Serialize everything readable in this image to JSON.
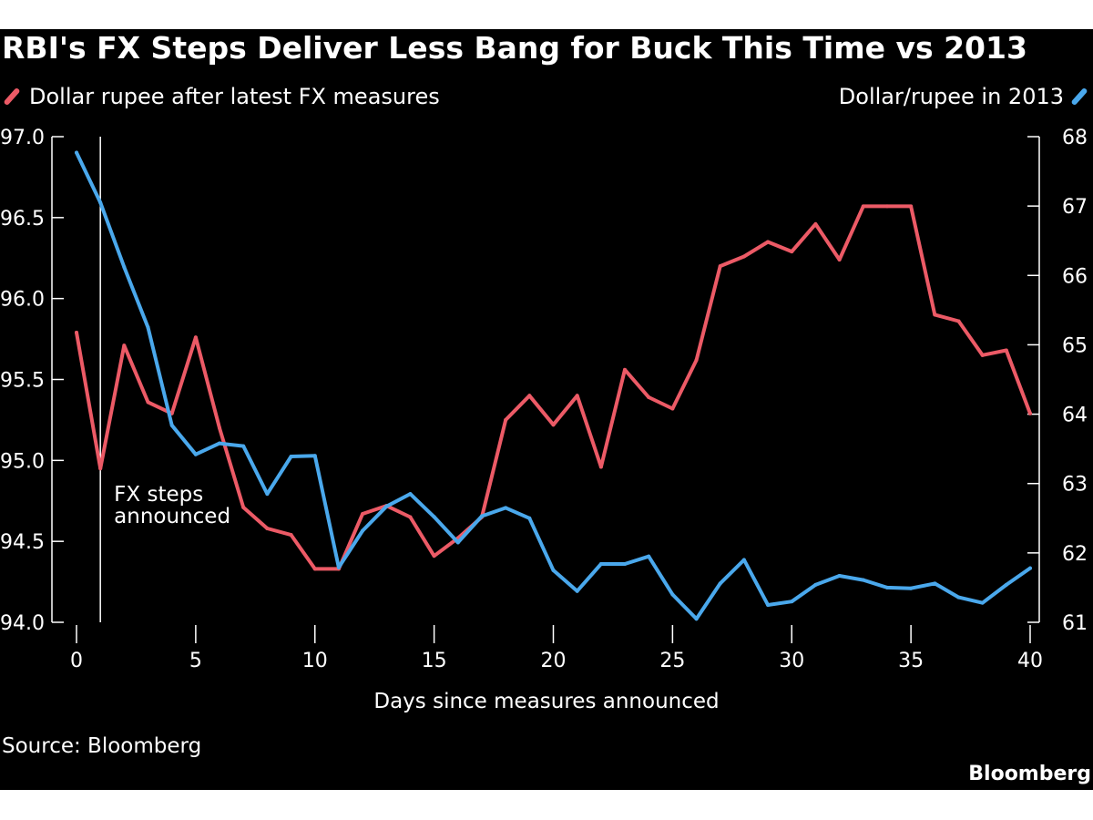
{
  "title": "RBI's FX Steps Deliver Less Bang for Buck This Time vs 2013",
  "legend": {
    "left_label": "Dollar rupee after latest FX measures",
    "right_label": "Dollar/rupee in 2013"
  },
  "annotation": {
    "line1": "FX steps",
    "line2": "announced",
    "x": 1
  },
  "source": "Source: Bloomberg",
  "brand": "Bloomberg",
  "colors": {
    "background": "#000000",
    "series_red": "#ec5a66",
    "series_blue": "#4aa8ec",
    "text": "#ffffff"
  },
  "chart_data": {
    "type": "line",
    "xlabel": "Days since measures announced",
    "xlim": [
      0,
      40
    ],
    "x_ticks": [
      0,
      5,
      10,
      15,
      20,
      25,
      30,
      35,
      40
    ],
    "y_left_ticks": [
      "94.0",
      "94.5",
      "95.0",
      "95.5",
      "96.0",
      "96.5",
      "97.0"
    ],
    "y_left_lim": [
      94.0,
      97.0
    ],
    "y_right_ticks": [
      "61",
      "62",
      "63",
      "64",
      "65",
      "66",
      "67",
      "68"
    ],
    "y_right_lim": [
      61,
      68
    ],
    "grid": false,
    "x": [
      0,
      1,
      2,
      3,
      4,
      5,
      6,
      7,
      8,
      9,
      10,
      11,
      12,
      13,
      14,
      15,
      16,
      17,
      18,
      19,
      20,
      21,
      22,
      23,
      24,
      25,
      26,
      27,
      28,
      29,
      30,
      31,
      32,
      33,
      34,
      35,
      36,
      37,
      38,
      39,
      40
    ],
    "series": [
      {
        "name": "Dollar rupee after latest FX measures",
        "axis": "left",
        "color": "#ec5a66",
        "values": [
          95.79,
          94.95,
          95.71,
          95.36,
          95.29,
          95.76,
          95.2,
          94.71,
          94.58,
          94.54,
          94.33,
          94.33,
          94.67,
          94.72,
          94.65,
          94.41,
          94.52,
          94.65,
          95.25,
          95.4,
          95.22,
          95.4,
          94.96,
          95.56,
          95.39,
          95.32,
          95.62,
          96.2,
          96.26,
          96.35,
          96.29,
          96.46,
          96.24,
          96.57,
          96.57,
          96.57,
          95.9,
          95.86,
          95.65,
          95.68,
          95.29
        ]
      },
      {
        "name": "Dollar/rupee in 2013",
        "axis": "right",
        "color": "#4aa8ec",
        "values": [
          67.77,
          67.05,
          66.12,
          65.25,
          63.84,
          63.42,
          63.58,
          63.54,
          62.85,
          63.39,
          63.4,
          61.79,
          62.32,
          62.67,
          62.85,
          62.52,
          62.15,
          62.53,
          62.65,
          62.5,
          61.75,
          61.45,
          61.84,
          61.84,
          61.95,
          61.4,
          61.05,
          61.56,
          61.9,
          61.25,
          61.3,
          61.54,
          61.67,
          61.61,
          61.5,
          61.49,
          61.56,
          61.36,
          61.28,
          61.54,
          61.78
        ]
      }
    ]
  }
}
